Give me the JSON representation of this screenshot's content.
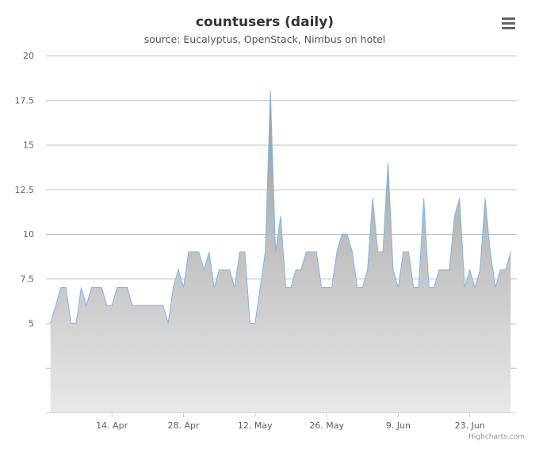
{
  "chart_data": {
    "type": "area",
    "title": "countusers (daily)",
    "subtitle": "source: Eucalyptus, OpenStack, Nimbus on hotel",
    "xlabel": "",
    "ylabel": "",
    "ylim": [
      0,
      20
    ],
    "y_tick_labels": [
      "5",
      "7.5",
      "10",
      "12.5",
      "15",
      "17.5",
      "20"
    ],
    "x_tick_labels": [
      "14. Apr",
      "28. Apr",
      "12. May",
      "26. May",
      "9. Jun",
      "23. Jun"
    ],
    "grid": true,
    "legend": "none",
    "colors": {
      "line": "#7cb5ec",
      "fill_top": "#999999",
      "fill_bottom": "#e8e8e8",
      "grid": "#c0c0c0"
    },
    "x_start": "2014-04-02",
    "series": [
      {
        "values": [
          5,
          6,
          7,
          7,
          5,
          5,
          7,
          6,
          7,
          7,
          7,
          6,
          6,
          7,
          7,
          7,
          6,
          6,
          6,
          6,
          6,
          6,
          6,
          5,
          7,
          8,
          7,
          9,
          9,
          9,
          8,
          9,
          7,
          8,
          8,
          8,
          7,
          9,
          9,
          5,
          5,
          7,
          9,
          18,
          9,
          11,
          7,
          7,
          8,
          8,
          9,
          9,
          9,
          7,
          7,
          7,
          9,
          10,
          10,
          9,
          7,
          7,
          8,
          12,
          9,
          9,
          14,
          8,
          7,
          9,
          9,
          7,
          7,
          12,
          7,
          7,
          8,
          8,
          8,
          11,
          12,
          7,
          8,
          7,
          8,
          12,
          9,
          7,
          8,
          8,
          9
        ]
      }
    ]
  },
  "credits": "Highcharts.com",
  "menu_icon": "hamburger-menu-icon"
}
